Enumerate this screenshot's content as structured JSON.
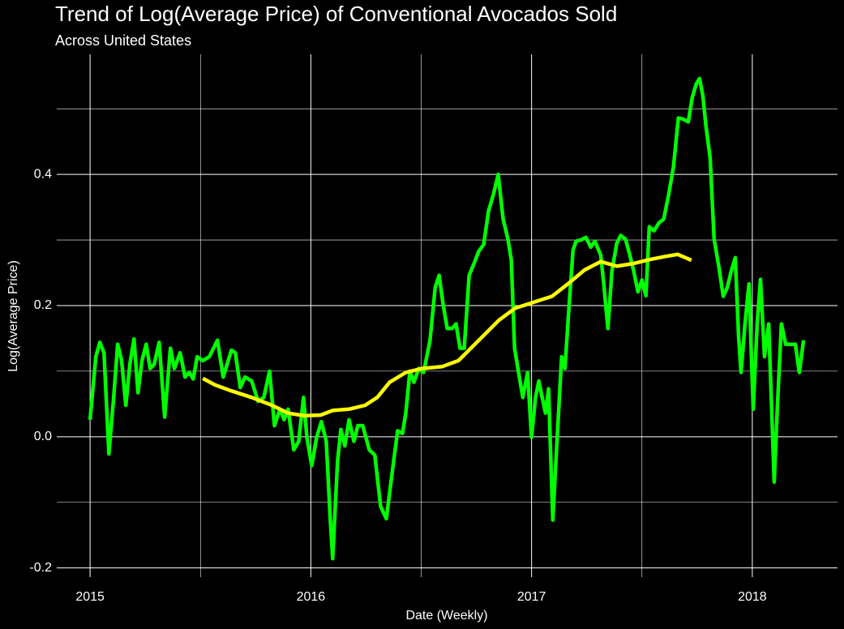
{
  "chart_data": {
    "type": "line",
    "title": "Trend of Log(Average Price) of Conventional Avocados Sold",
    "subtitle": "Across United States",
    "x_label": "Date (Weekly)",
    "y_label": "Log(Average Price)",
    "xlim": [
      2014.849,
      2018.386
    ],
    "xticks": [
      2015,
      2016,
      2017,
      2018
    ],
    "ylim": [
      -0.214,
      0.583
    ],
    "yticks": [
      -0.2,
      {
        "value": 0,
        "label": "0.0"
      },
      0.2,
      0.4
    ],
    "grid": true,
    "minor_grid": true,
    "series": [
      {
        "color": "#00ff00",
        "x": [
          2015.0,
          2015.026,
          2015.044,
          2015.063,
          2015.085,
          2015.107,
          2015.125,
          2015.143,
          2015.162,
          2015.18,
          2015.199,
          2015.217,
          2015.235,
          2015.254,
          2015.272,
          2015.29,
          2015.313,
          2015.338,
          2015.364,
          2015.382,
          2015.408,
          2015.43,
          2015.449,
          2015.467,
          2015.485,
          2015.511,
          2015.54,
          2015.577,
          2015.603,
          2015.64,
          2015.658,
          2015.68,
          2015.702,
          2015.732,
          2015.761,
          2015.787,
          2015.813,
          2015.835,
          2015.86,
          2015.879,
          2015.897,
          2015.923,
          2015.945,
          2015.967,
          2015.982,
          2016.004,
          2016.026,
          2016.048,
          2016.07,
          2016.088,
          2016.099,
          2016.121,
          2016.136,
          2016.154,
          2016.173,
          2016.195,
          2016.213,
          2016.235,
          2016.265,
          2016.29,
          2016.316,
          2016.342,
          2016.371,
          2016.393,
          2016.415,
          2016.43,
          2016.449,
          2016.467,
          2016.489,
          2016.511,
          2016.54,
          2016.563,
          2016.581,
          2016.599,
          2016.618,
          2016.64,
          2016.658,
          2016.676,
          2016.695,
          2016.717,
          2016.739,
          2016.761,
          2016.783,
          2016.805,
          2016.827,
          2016.849,
          2016.871,
          2016.893,
          2016.908,
          2016.923,
          2016.938,
          2016.96,
          2016.982,
          2017.0,
          2017.018,
          2017.033,
          2017.048,
          2017.063,
          2017.077,
          2017.096,
          2017.114,
          2017.136,
          2017.151,
          2017.169,
          2017.188,
          2017.202,
          2017.224,
          2017.246,
          2017.268,
          2017.287,
          2017.313,
          2017.327,
          2017.346,
          2017.364,
          2017.386,
          2017.404,
          2017.426,
          2017.445,
          2017.463,
          2017.482,
          2017.5,
          2017.518,
          2017.533,
          2017.555,
          2017.577,
          2017.599,
          2017.621,
          2017.643,
          2017.665,
          2017.688,
          2017.71,
          2017.728,
          2017.746,
          2017.761,
          2017.776,
          2017.79,
          2017.809,
          2017.827,
          2017.849,
          2017.868,
          2017.886,
          2017.904,
          2017.923,
          2017.938,
          2017.949,
          2017.967,
          2017.985,
          2018.004,
          2018.022,
          2018.037,
          2018.055,
          2018.074,
          2018.099,
          2018.114,
          2018.132,
          2018.151,
          2018.173,
          2018.195,
          2018.213,
          2018.232
        ],
        "values": [
          0.026,
          0.122,
          0.144,
          0.128,
          -0.026,
          0.06,
          0.141,
          0.116,
          0.048,
          0.11,
          0.149,
          0.067,
          0.116,
          0.141,
          0.104,
          0.11,
          0.144,
          0.03,
          0.135,
          0.104,
          0.128,
          0.091,
          0.098,
          0.088,
          0.122,
          0.116,
          0.122,
          0.147,
          0.091,
          0.132,
          0.128,
          0.075,
          0.091,
          0.085,
          0.054,
          0.06,
          0.1,
          0.017,
          0.042,
          0.026,
          0.042,
          -0.02,
          -0.007,
          0.06,
          -0.001,
          -0.044,
          -0.001,
          0.023,
          -0.007,
          -0.125,
          -0.186,
          -0.038,
          0.011,
          -0.014,
          0.026,
          -0.007,
          0.017,
          0.017,
          -0.02,
          -0.028,
          -0.106,
          -0.125,
          -0.048,
          0.009,
          0.005,
          0.036,
          0.1,
          0.083,
          0.104,
          0.098,
          0.147,
          0.227,
          0.246,
          0.202,
          0.165,
          0.165,
          0.172,
          0.135,
          0.135,
          0.246,
          0.264,
          0.283,
          0.293,
          0.344,
          0.369,
          0.4,
          0.332,
          0.301,
          0.27,
          0.135,
          0.104,
          0.06,
          0.098,
          -0.001,
          0.06,
          0.085,
          0.06,
          0.036,
          0.073,
          -0.127,
          -0.014,
          0.122,
          0.104,
          0.196,
          0.285,
          0.298,
          0.3,
          0.304,
          0.289,
          0.298,
          0.277,
          0.233,
          0.165,
          0.252,
          0.295,
          0.307,
          0.301,
          0.277,
          0.252,
          0.221,
          0.239,
          0.215,
          0.32,
          0.314,
          0.326,
          0.332,
          0.369,
          0.412,
          0.486,
          0.484,
          0.48,
          0.517,
          0.538,
          0.546,
          0.52,
          0.474,
          0.425,
          0.301,
          0.258,
          0.214,
          0.227,
          0.252,
          0.273,
          0.153,
          0.098,
          0.172,
          0.233,
          0.042,
          0.172,
          0.24,
          0.122,
          0.172,
          -0.069,
          0.048,
          0.172,
          0.141,
          0.141,
          0.141,
          0.098,
          0.147
        ]
      },
      {
        "color": "#ffff00",
        "x": [
          2015.511,
          2015.566,
          2015.64,
          2015.732,
          2015.824,
          2015.897,
          2015.971,
          2016.044,
          2016.099,
          2016.173,
          2016.246,
          2016.301,
          2016.357,
          2016.43,
          2016.504,
          2016.596,
          2016.669,
          2016.761,
          2016.853,
          2016.926,
          2017.018,
          2017.092,
          2017.165,
          2017.239,
          2017.313,
          2017.386,
          2017.46,
          2017.533,
          2017.607,
          2017.662,
          2017.724
        ],
        "values": [
          0.089,
          0.079,
          0.07,
          0.06,
          0.048,
          0.036,
          0.032,
          0.033,
          0.04,
          0.042,
          0.048,
          0.06,
          0.083,
          0.098,
          0.104,
          0.107,
          0.116,
          0.147,
          0.178,
          0.196,
          0.206,
          0.214,
          0.233,
          0.254,
          0.267,
          0.26,
          0.264,
          0.27,
          0.275,
          0.278,
          0.269
        ]
      }
    ]
  }
}
